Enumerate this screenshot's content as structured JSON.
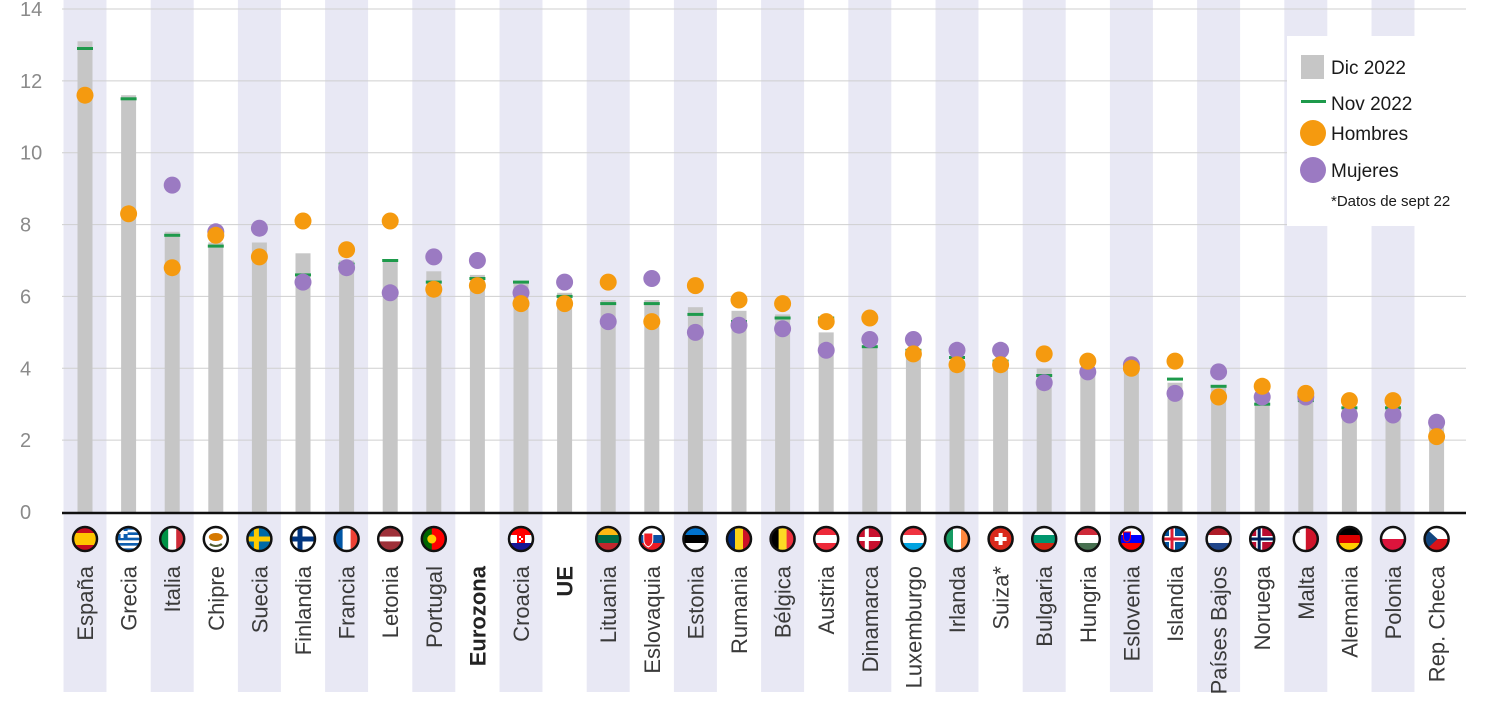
{
  "colors": {
    "band": "#e8e8f4",
    "bar": "#c6c6c6",
    "nov_mark": "#1e9a4b",
    "men": "#f59a0f",
    "women": "#9b7ac2",
    "grid": "#cfcfcf",
    "axis": "#111111"
  },
  "chart_data": {
    "type": "bar",
    "ylim": [
      0,
      14
    ],
    "yticks": [
      0,
      2,
      4,
      6,
      8,
      10,
      12,
      14
    ],
    "grid": true,
    "legend_position": "top-right",
    "categories": [
      "España",
      "Grecia",
      "Italia",
      "Chipre",
      "Suecia",
      "Finlandia",
      "Francia",
      "Letonia",
      "Portugal",
      "Eurozona",
      "Croacia",
      "UE",
      "Lituania",
      "Eslovaquia",
      "Estonia",
      "Rumania",
      "Bélgica",
      "Austria",
      "Dinamarca",
      "Luxemburgo",
      "Irlanda",
      "Suiza*",
      "Bulgaria",
      "Hungria",
      "Eslovenia",
      "Islandia",
      "Países Bajos",
      "Noruega",
      "Malta",
      "Alemania",
      "Polonia",
      "Rep. Checa"
    ],
    "bold_categories": [
      "Eurozona",
      "UE"
    ],
    "flags": [
      "spain-flag-icon",
      "greece-flag-icon",
      "italy-flag-icon",
      "cyprus-flag-icon",
      "sweden-flag-icon",
      "finland-flag-icon",
      "france-flag-icon",
      "latvia-flag-icon",
      "portugal-flag-icon",
      "",
      "croatia-flag-icon",
      "",
      "lithuania-flag-icon",
      "slovakia-flag-icon",
      "estonia-flag-icon",
      "romania-flag-icon",
      "belgium-flag-icon",
      "austria-flag-icon",
      "denmark-flag-icon",
      "luxembourg-flag-icon",
      "ireland-flag-icon",
      "switzerland-flag-icon",
      "bulgaria-flag-icon",
      "hungary-flag-icon",
      "slovenia-flag-icon",
      "iceland-flag-icon",
      "netherlands-flag-icon",
      "norway-flag-icon",
      "malta-flag-icon",
      "germany-flag-icon",
      "poland-flag-icon",
      "czech-flag-icon"
    ],
    "series": [
      {
        "name": "Dic  2022",
        "kind": "bar",
        "values": [
          13.1,
          11.6,
          7.8,
          7.5,
          7.5,
          7.2,
          7.0,
          7.0,
          6.7,
          6.6,
          6.4,
          6.1,
          5.9,
          5.9,
          5.7,
          5.6,
          5.5,
          5.0,
          4.6,
          4.5,
          4.2,
          4.2,
          4.0,
          3.9,
          3.9,
          3.6,
          3.5,
          3.2,
          3.1,
          2.9,
          2.9,
          2.4
        ]
      },
      {
        "name": "Nov 2022",
        "kind": "tick",
        "values": [
          12.9,
          11.5,
          7.7,
          7.4,
          7.1,
          6.6,
          6.9,
          7.0,
          6.4,
          6.5,
          6.4,
          6.0,
          5.8,
          5.8,
          5.5,
          5.3,
          5.4,
          5.4,
          4.6,
          4.5,
          4.3,
          4.2,
          3.8,
          3.9,
          4.0,
          3.7,
          3.5,
          3.0,
          3.1,
          2.9,
          2.9,
          2.5
        ]
      },
      {
        "name": "Hombres",
        "kind": "point",
        "values": [
          11.6,
          8.3,
          6.8,
          7.7,
          7.1,
          8.1,
          7.3,
          8.1,
          6.2,
          6.3,
          5.8,
          5.8,
          6.4,
          5.3,
          6.3,
          5.9,
          5.8,
          5.3,
          5.4,
          4.4,
          4.1,
          4.1,
          4.4,
          4.2,
          4.0,
          4.2,
          3.2,
          3.5,
          3.3,
          3.1,
          3.1,
          2.1
        ]
      },
      {
        "name": "Mujeres",
        "kind": "point",
        "values": [
          null,
          null,
          9.1,
          7.8,
          7.9,
          6.4,
          6.8,
          6.1,
          7.1,
          7.0,
          6.1,
          6.4,
          5.3,
          6.5,
          5.0,
          5.2,
          5.1,
          4.5,
          4.8,
          4.8,
          4.5,
          4.5,
          3.6,
          3.9,
          4.1,
          3.3,
          3.9,
          3.2,
          3.2,
          2.7,
          2.7,
          2.5
        ]
      }
    ],
    "legend": {
      "dec": "Dic  2022",
      "nov": "Nov 2022",
      "men": "Hombres",
      "women": "Mujeres",
      "note": "*Datos de sept 22"
    }
  }
}
